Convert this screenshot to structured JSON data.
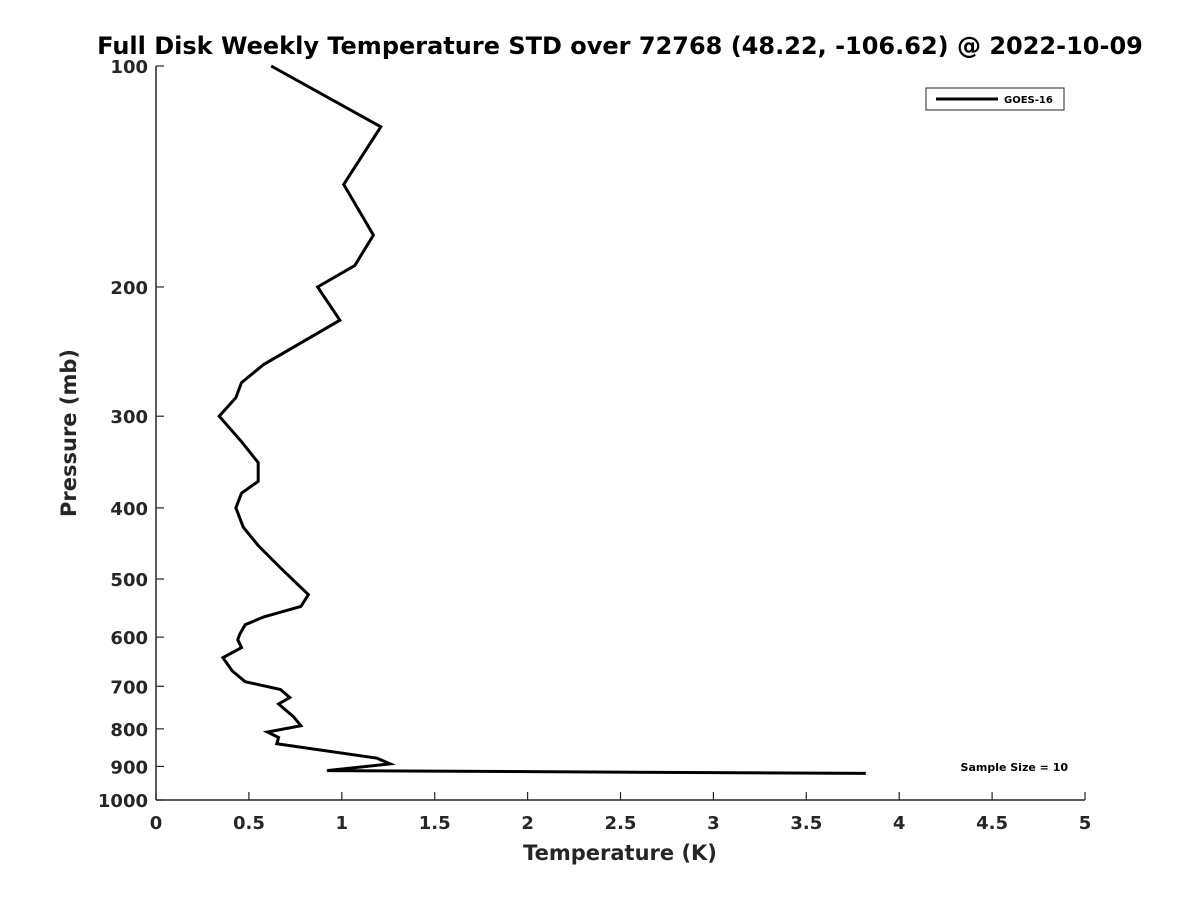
{
  "chart_data": {
    "type": "line",
    "title": "Full Disk Weekly Temperature STD over 72768 (48.22, -106.62) @ 2022-10-09",
    "xlabel": "Temperature (K)",
    "ylabel": "Pressure (mb)",
    "xlim": [
      0,
      5
    ],
    "ylim": [
      100,
      1000
    ],
    "y_scale": "log",
    "y_reversed": true,
    "x_ticks": [
      "0",
      "0.5",
      "1",
      "1.5",
      "2",
      "2.5",
      "3",
      "3.5",
      "4",
      "4.5",
      "5"
    ],
    "y_ticks": [
      "100",
      "200",
      "300",
      "400",
      "500",
      "600",
      "700",
      "800",
      "900",
      "1000"
    ],
    "grid": false,
    "legend_position": "top-right",
    "annotation": "Sample Size = 10",
    "series": [
      {
        "name": "GOES-16",
        "color": "#000000",
        "x": [
          0.62,
          1.21,
          1.01,
          1.17,
          1.07,
          0.87,
          0.99,
          0.58,
          0.46,
          0.43,
          0.34,
          0.46,
          0.55,
          0.55,
          0.46,
          0.43,
          0.47,
          0.55,
          0.66,
          0.75,
          0.82,
          0.78,
          0.58,
          0.48,
          0.45,
          0.44,
          0.46,
          0.36,
          0.41,
          0.48,
          0.67,
          0.72,
          0.66,
          0.74,
          0.78,
          0.6,
          0.66,
          0.65,
          1.19,
          1.26,
          0.92,
          3.82
        ],
        "y": [
          100,
          121,
          145,
          170,
          187,
          200,
          222,
          255,
          270,
          283,
          300,
          325,
          347,
          368,
          382,
          400,
          425,
          450,
          480,
          505,
          525,
          545,
          563,
          577,
          595,
          605,
          620,
          640,
          667,
          690,
          707,
          725,
          740,
          770,
          792,
          808,
          822,
          838,
          877,
          893,
          912,
          920
        ]
      }
    ]
  }
}
